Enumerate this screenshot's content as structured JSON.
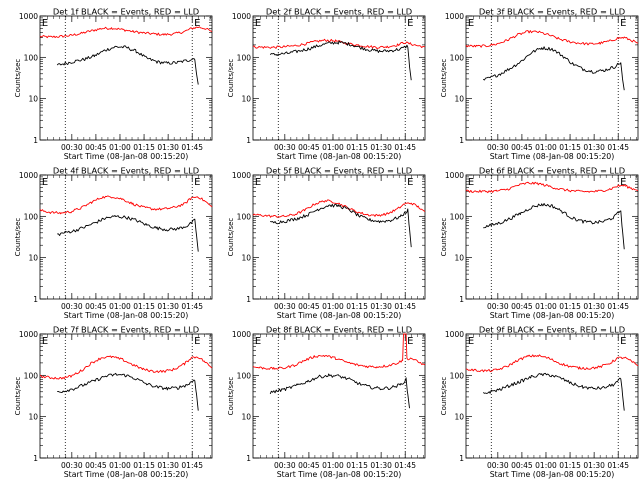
{
  "chart_data": [
    {
      "type": "line",
      "title": "Det 1f BLACK = Events, RED = LLD",
      "xlabel": "Start Time (08-Jan-08 00:15:20)",
      "ylabel": "Counts/sec",
      "yscale": "log",
      "ylim": [
        1,
        1000
      ],
      "xlim": [
        0,
        100
      ],
      "x_tick_labels": [
        "00:30",
        "00:45",
        "01:00",
        "01:15",
        "01:30",
        "01:45"
      ],
      "y_tick_labels": [
        "1",
        "10",
        "100",
        "1000"
      ],
      "vlines": [
        14.7,
        88.5
      ],
      "markers": [
        {
          "label": "E",
          "x": 0.5
        },
        {
          "label": "E",
          "x": 89.0
        }
      ],
      "series": [
        {
          "color": "#ff0000",
          "x": [
            0,
            6,
            12,
            18,
            24,
            30,
            36,
            42,
            48,
            54,
            60,
            66,
            72,
            78,
            84,
            88,
            92,
            96,
            100
          ],
          "y": [
            320,
            310,
            320,
            340,
            380,
            440,
            500,
            510,
            470,
            420,
            390,
            370,
            355,
            370,
            420,
            500,
            540,
            500,
            420
          ]
        },
        {
          "color": "#000000",
          "x": [
            10,
            14,
            20,
            26,
            32,
            38,
            44,
            50,
            56,
            62,
            68,
            74,
            80,
            86,
            90,
            91,
            92
          ],
          "y": [
            65,
            70,
            80,
            90,
            110,
            150,
            180,
            175,
            140,
            95,
            78,
            72,
            75,
            85,
            95,
            40,
            22
          ]
        }
      ]
    },
    {
      "type": "line",
      "title": "Det 2f BLACK = Events, RED = LLD",
      "xlabel": "Start Time (08-Jan-08 00:15:20)",
      "ylabel": "Counts/sec",
      "yscale": "log",
      "ylim": [
        1,
        1000
      ],
      "xlim": [
        0,
        100
      ],
      "x_tick_labels": [
        "00:30",
        "00:45",
        "01:00",
        "01:15",
        "01:30",
        "01:45"
      ],
      "y_tick_labels": [
        "1",
        "10",
        "100",
        "1000"
      ],
      "vlines": [
        14.7,
        88.5
      ],
      "markers": [
        {
          "label": "E",
          "x": 0.5
        },
        {
          "label": "E",
          "x": 89.0
        }
      ],
      "series": [
        {
          "color": "#ff0000",
          "x": [
            0,
            6,
            12,
            18,
            24,
            30,
            36,
            42,
            48,
            54,
            60,
            66,
            72,
            78,
            84,
            88,
            92,
            96,
            100
          ],
          "y": [
            180,
            175,
            175,
            180,
            190,
            210,
            240,
            260,
            250,
            220,
            200,
            185,
            175,
            180,
            200,
            230,
            210,
            190,
            180
          ]
        },
        {
          "color": "#000000",
          "x": [
            10,
            14,
            20,
            26,
            32,
            38,
            44,
            50,
            56,
            62,
            68,
            74,
            80,
            86,
            90,
            91,
            92
          ],
          "y": [
            115,
            118,
            125,
            140,
            160,
            190,
            220,
            230,
            210,
            175,
            150,
            140,
            145,
            160,
            190,
            60,
            28
          ]
        }
      ]
    },
    {
      "type": "line",
      "title": "Det 3f BLACK = Events, RED = LLD",
      "xlabel": "Start Time (08-Jan-08 00:15:20)",
      "ylabel": "Counts/sec",
      "yscale": "log",
      "ylim": [
        1,
        1000
      ],
      "xlim": [
        0,
        100
      ],
      "x_tick_labels": [
        "00:30",
        "00:45",
        "01:00",
        "01:15",
        "01:30",
        "01:45"
      ],
      "y_tick_labels": [
        "1",
        "10",
        "100",
        "1000"
      ],
      "vlines": [
        14.7,
        88.5
      ],
      "markers": [
        {
          "label": "E",
          "x": 0.5
        },
        {
          "label": "E",
          "x": 89.0
        }
      ],
      "series": [
        {
          "color": "#ff0000",
          "x": [
            0,
            6,
            12,
            18,
            24,
            30,
            36,
            42,
            48,
            54,
            60,
            66,
            72,
            78,
            84,
            88,
            92,
            96,
            100
          ],
          "y": [
            190,
            185,
            190,
            210,
            260,
            350,
            420,
            410,
            350,
            280,
            240,
            220,
            210,
            220,
            250,
            290,
            300,
            260,
            220
          ]
        },
        {
          "color": "#000000",
          "x": [
            10,
            14,
            20,
            26,
            32,
            38,
            44,
            50,
            56,
            62,
            68,
            74,
            80,
            86,
            90,
            91,
            92
          ],
          "y": [
            28,
            32,
            40,
            55,
            80,
            130,
            170,
            160,
            110,
            70,
            52,
            45,
            48,
            58,
            75,
            30,
            16
          ]
        }
      ]
    },
    {
      "type": "line",
      "title": "Det 4f BLACK = Events, RED = LLD",
      "xlabel": "Start Time (08-Jan-08 00:15:20)",
      "ylabel": "Counts/sec",
      "yscale": "log",
      "ylim": [
        1,
        1000
      ],
      "xlim": [
        0,
        100
      ],
      "x_tick_labels": [
        "00:30",
        "00:45",
        "01:00",
        "01:15",
        "01:30",
        "01:45"
      ],
      "y_tick_labels": [
        "1",
        "10",
        "100",
        "1000"
      ],
      "vlines": [
        14.7,
        88.5
      ],
      "markers": [
        {
          "label": "E",
          "x": 0.5
        },
        {
          "label": "E",
          "x": 89.0
        }
      ],
      "series": [
        {
          "color": "#ff0000",
          "x": [
            0,
            6,
            12,
            18,
            24,
            30,
            36,
            42,
            48,
            54,
            60,
            66,
            72,
            78,
            84,
            88,
            92,
            96,
            100
          ],
          "y": [
            140,
            125,
            120,
            130,
            160,
            220,
            290,
            300,
            260,
            200,
            165,
            150,
            150,
            165,
            200,
            280,
            300,
            230,
            170
          ]
        },
        {
          "color": "#000000",
          "x": [
            10,
            14,
            20,
            26,
            32,
            38,
            44,
            50,
            56,
            62,
            68,
            74,
            80,
            86,
            90,
            91,
            92
          ],
          "y": [
            36,
            40,
            45,
            55,
            70,
            90,
            100,
            95,
            80,
            62,
            52,
            48,
            50,
            60,
            80,
            35,
            14
          ]
        }
      ]
    },
    {
      "type": "line",
      "title": "Det 5f BLACK = Events, RED = LLD",
      "xlabel": "Start Time (08-Jan-08 00:15:20)",
      "ylabel": "Counts/sec",
      "yscale": "log",
      "ylim": [
        1,
        1000
      ],
      "xlim": [
        0,
        100
      ],
      "x_tick_labels": [
        "00:30",
        "00:45",
        "01:00",
        "01:15",
        "01:30",
        "01:45"
      ],
      "y_tick_labels": [
        "1",
        "10",
        "100",
        "1000"
      ],
      "vlines": [
        14.7,
        88.5
      ],
      "markers": [
        {
          "label": "E",
          "x": 0.5
        },
        {
          "label": "E",
          "x": 89.0
        }
      ],
      "series": [
        {
          "color": "#ff0000",
          "x": [
            0,
            6,
            12,
            18,
            24,
            30,
            36,
            42,
            48,
            54,
            60,
            66,
            72,
            78,
            84,
            88,
            92,
            96,
            100
          ],
          "y": [
            110,
            105,
            100,
            100,
            110,
            140,
            200,
            240,
            220,
            170,
            130,
            110,
            105,
            115,
            150,
            200,
            210,
            170,
            130
          ]
        },
        {
          "color": "#000000",
          "x": [
            10,
            14,
            20,
            26,
            32,
            38,
            44,
            50,
            56,
            62,
            68,
            74,
            80,
            86,
            90,
            91,
            92
          ],
          "y": [
            70,
            72,
            78,
            90,
            110,
            150,
            185,
            180,
            145,
            100,
            82,
            75,
            80,
            100,
            140,
            50,
            18
          ]
        }
      ]
    },
    {
      "type": "line",
      "title": "Det 6f BLACK = Events, RED = LLD",
      "xlabel": "Start Time (08-Jan-08 00:15:20)",
      "ylabel": "Counts/sec",
      "yscale": "log",
      "ylim": [
        1,
        1000
      ],
      "xlim": [
        0,
        100
      ],
      "x_tick_labels": [
        "00:30",
        "00:45",
        "01:00",
        "01:15",
        "01:30",
        "01:45"
      ],
      "y_tick_labels": [
        "1",
        "10",
        "100",
        "1000"
      ],
      "vlines": [
        14.7,
        88.5
      ],
      "markers": [
        {
          "label": "E",
          "x": 0.5
        },
        {
          "label": "E",
          "x": 89.0
        }
      ],
      "series": [
        {
          "color": "#ff0000",
          "x": [
            0,
            6,
            12,
            18,
            24,
            30,
            36,
            42,
            48,
            54,
            60,
            66,
            72,
            78,
            84,
            88,
            92,
            96,
            100
          ],
          "y": [
            410,
            400,
            400,
            410,
            450,
            560,
            640,
            620,
            540,
            460,
            420,
            400,
            395,
            410,
            460,
            540,
            560,
            480,
            420
          ]
        },
        {
          "color": "#000000",
          "x": [
            10,
            14,
            20,
            26,
            32,
            38,
            44,
            50,
            56,
            62,
            68,
            74,
            80,
            86,
            90,
            91,
            92
          ],
          "y": [
            55,
            60,
            70,
            90,
            120,
            165,
            195,
            180,
            130,
            90,
            75,
            70,
            75,
            95,
            140,
            45,
            16
          ]
        }
      ]
    },
    {
      "type": "line",
      "title": "Det 7f BLACK = Events, RED = LLD",
      "xlabel": "Start Time (08-Jan-08 00:15:20)",
      "ylabel": "Counts/sec",
      "yscale": "log",
      "ylim": [
        1,
        1000
      ],
      "xlim": [
        0,
        100
      ],
      "x_tick_labels": [
        "00:30",
        "00:45",
        "01:00",
        "01:15",
        "01:30",
        "01:45"
      ],
      "y_tick_labels": [
        "1",
        "10",
        "100",
        "1000"
      ],
      "vlines": [
        14.7,
        88.5
      ],
      "markers": [
        {
          "label": "E",
          "x": 0.5
        },
        {
          "label": "E",
          "x": 89.0
        }
      ],
      "series": [
        {
          "color": "#ff0000",
          "x": [
            0,
            6,
            12,
            18,
            24,
            30,
            36,
            42,
            48,
            54,
            60,
            66,
            72,
            78,
            84,
            88,
            92,
            96,
            100
          ],
          "y": [
            95,
            88,
            85,
            95,
            130,
            200,
            270,
            280,
            240,
            180,
            140,
            125,
            125,
            140,
            190,
            270,
            280,
            210,
            150
          ]
        },
        {
          "color": "#000000",
          "x": [
            10,
            14,
            20,
            26,
            32,
            38,
            44,
            50,
            56,
            62,
            68,
            74,
            80,
            86,
            90,
            91,
            92
          ],
          "y": [
            40,
            42,
            48,
            60,
            75,
            95,
            105,
            100,
            82,
            62,
            52,
            48,
            50,
            60,
            80,
            35,
            14
          ]
        }
      ]
    },
    {
      "type": "line",
      "title": "Det 8f BLACK = Events, RED = LLD",
      "xlabel": "Start Time (08-Jan-08 00:15:20)",
      "ylabel": "Counts/sec",
      "yscale": "log",
      "ylim": [
        1,
        1000
      ],
      "xlim": [
        0,
        100
      ],
      "x_tick_labels": [
        "00:30",
        "00:45",
        "01:00",
        "01:15",
        "01:30",
        "01:45"
      ],
      "y_tick_labels": [
        "1",
        "10",
        "100",
        "1000"
      ],
      "vlines": [
        14.7,
        88.5
      ],
      "markers": [
        {
          "label": "E",
          "x": 0.5
        },
        {
          "label": "E",
          "x": 89.0
        }
      ],
      "series": [
        {
          "color": "#ff0000",
          "x": [
            0,
            6,
            12,
            18,
            24,
            30,
            36,
            42,
            48,
            54,
            60,
            66,
            72,
            78,
            84,
            87,
            87.5,
            89,
            89.5,
            92,
            96,
            100
          ],
          "y": [
            160,
            150,
            145,
            150,
            175,
            230,
            290,
            300,
            260,
            210,
            180,
            165,
            160,
            170,
            200,
            230,
            1000,
            1000,
            250,
            260,
            210,
            180
          ]
        },
        {
          "color": "#000000",
          "x": [
            10,
            14,
            20,
            26,
            32,
            38,
            44,
            50,
            56,
            62,
            68,
            74,
            80,
            86,
            89,
            90,
            91
          ],
          "y": [
            38,
            42,
            48,
            58,
            72,
            92,
            100,
            96,
            80,
            62,
            52,
            48,
            50,
            60,
            80,
            35,
            16
          ]
        }
      ]
    },
    {
      "type": "line",
      "title": "Det 9f BLACK = Events, RED = LLD",
      "xlabel": "Start Time (08-Jan-08 00:15:20)",
      "ylabel": "Counts/sec",
      "yscale": "log",
      "ylim": [
        1,
        1000
      ],
      "xlim": [
        0,
        100
      ],
      "x_tick_labels": [
        "00:30",
        "00:45",
        "01:00",
        "01:15",
        "01:30",
        "01:45"
      ],
      "y_tick_labels": [
        "1",
        "10",
        "100",
        "1000"
      ],
      "vlines": [
        14.7,
        88.5
      ],
      "markers": [
        {
          "label": "E",
          "x": 0.5
        },
        {
          "label": "E",
          "x": 89.0
        }
      ],
      "series": [
        {
          "color": "#ff0000",
          "x": [
            0,
            6,
            12,
            18,
            24,
            30,
            36,
            42,
            48,
            54,
            60,
            66,
            72,
            78,
            84,
            88,
            92,
            96,
            100
          ],
          "y": [
            140,
            132,
            128,
            135,
            165,
            230,
            290,
            300,
            260,
            200,
            165,
            150,
            148,
            160,
            200,
            260,
            270,
            220,
            170
          ]
        },
        {
          "color": "#000000",
          "x": [
            10,
            14,
            20,
            26,
            32,
            38,
            44,
            50,
            56,
            62,
            68,
            74,
            80,
            86,
            90,
            91,
            92
          ],
          "y": [
            36,
            40,
            46,
            58,
            72,
            92,
            105,
            100,
            82,
            62,
            52,
            48,
            50,
            60,
            82,
            34,
            14
          ]
        }
      ]
    }
  ]
}
